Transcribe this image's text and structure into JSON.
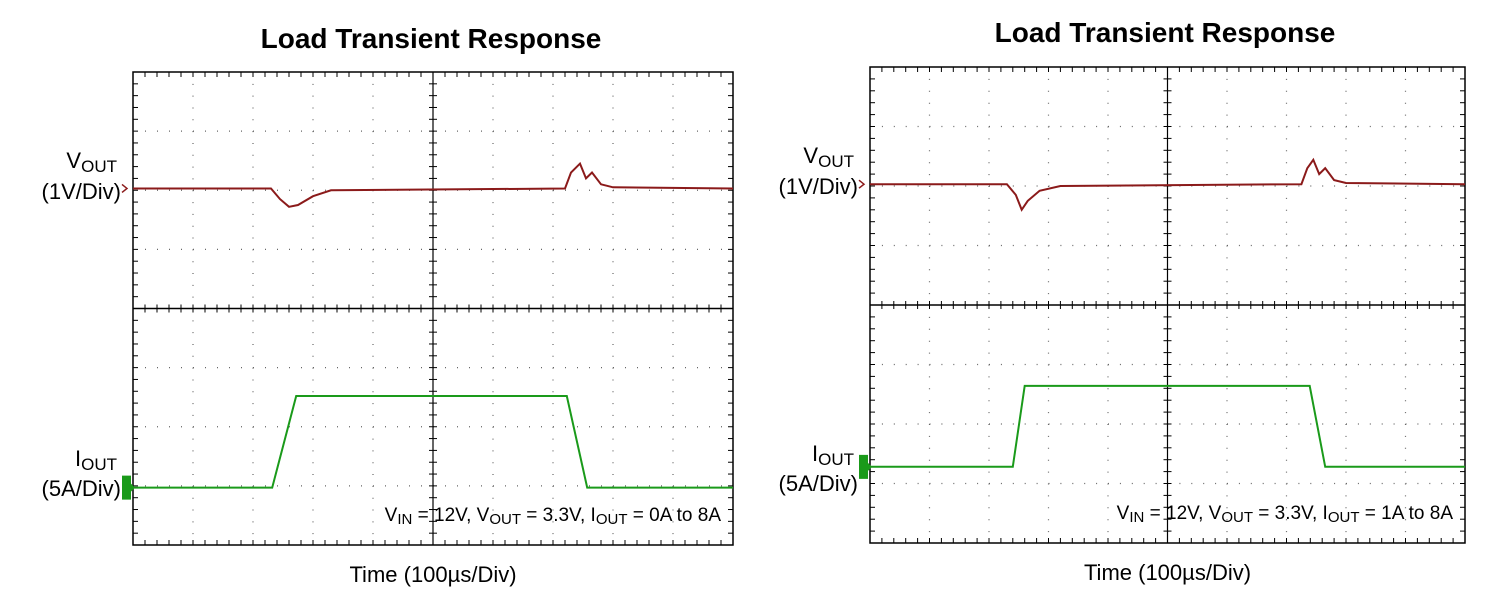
{
  "chart_data": [
    {
      "type": "scope",
      "title": "Load Transient Response",
      "x_label": "Time  (100µs/Div)",
      "xlim": [
        0,
        10
      ],
      "ylim": [
        0,
        8
      ],
      "grid": true,
      "channels": [
        {
          "main": "V",
          "sub": "OUT",
          "scale": "(1V/Div)",
          "color": "#8b1a1a"
        },
        {
          "main": "I",
          "sub": "OUT",
          "scale": "(5A/Div)",
          "color": "#1a9a1a"
        }
      ],
      "annotation": [
        {
          "text": "V",
          "sub": "IN"
        },
        {
          "text": " = 12V, V",
          "sub": "OUT"
        },
        {
          "text": " = 3.3V, I",
          "sub": "OUT"
        },
        {
          "text": " = 0A to 8A"
        }
      ],
      "series": [
        {
          "color": "#8b1a1a",
          "x": [
            0,
            2.3,
            2.45,
            2.6,
            2.75,
            3.0,
            3.3,
            7.2,
            7.3,
            7.45,
            7.55,
            7.65,
            7.8,
            8.0,
            10
          ],
          "values": [
            6.03,
            6.03,
            5.85,
            5.72,
            5.75,
            5.9,
            6.0,
            6.03,
            6.3,
            6.45,
            6.2,
            6.3,
            6.1,
            6.05,
            6.03
          ]
        },
        {
          "color": "#1a9a1a",
          "x": [
            0,
            2.32,
            2.72,
            7.23,
            7.57,
            10
          ],
          "values": [
            0.97,
            0.97,
            2.52,
            2.52,
            0.97,
            0.97
          ]
        }
      ]
    },
    {
      "type": "scope",
      "title": "Load Transient Response",
      "x_label": "Time  (100µs/Div)",
      "xlim": [
        0,
        10
      ],
      "ylim": [
        0,
        8
      ],
      "grid": true,
      "channels": [
        {
          "main": "V",
          "sub": "OUT",
          "scale": "(1V/Div)",
          "color": "#8b1a1a"
        },
        {
          "main": "I",
          "sub": "OUT",
          "scale": "(5A/Div)",
          "color": "#1a9a1a"
        }
      ],
      "annotation": [
        {
          "text": "V",
          "sub": "IN"
        },
        {
          "text": " = 12V, V",
          "sub": "OUT"
        },
        {
          "text": " = 3.3V, I",
          "sub": "OUT"
        },
        {
          "text": " = 1A to 8A"
        }
      ],
      "series": [
        {
          "color": "#8b1a1a",
          "x": [
            0,
            2.3,
            2.45,
            2.55,
            2.65,
            2.85,
            3.2,
            7.25,
            7.35,
            7.45,
            7.55,
            7.65,
            7.8,
            8.0,
            10
          ],
          "values": [
            6.03,
            6.03,
            5.85,
            5.6,
            5.75,
            5.92,
            6.0,
            6.03,
            6.3,
            6.44,
            6.2,
            6.3,
            6.1,
            6.05,
            6.03
          ]
        },
        {
          "color": "#1a9a1a",
          "x": [
            0,
            2.4,
            2.6,
            7.39,
            7.65,
            10
          ],
          "values": [
            1.28,
            1.28,
            2.64,
            2.64,
            1.28,
            1.28
          ]
        }
      ]
    }
  ]
}
